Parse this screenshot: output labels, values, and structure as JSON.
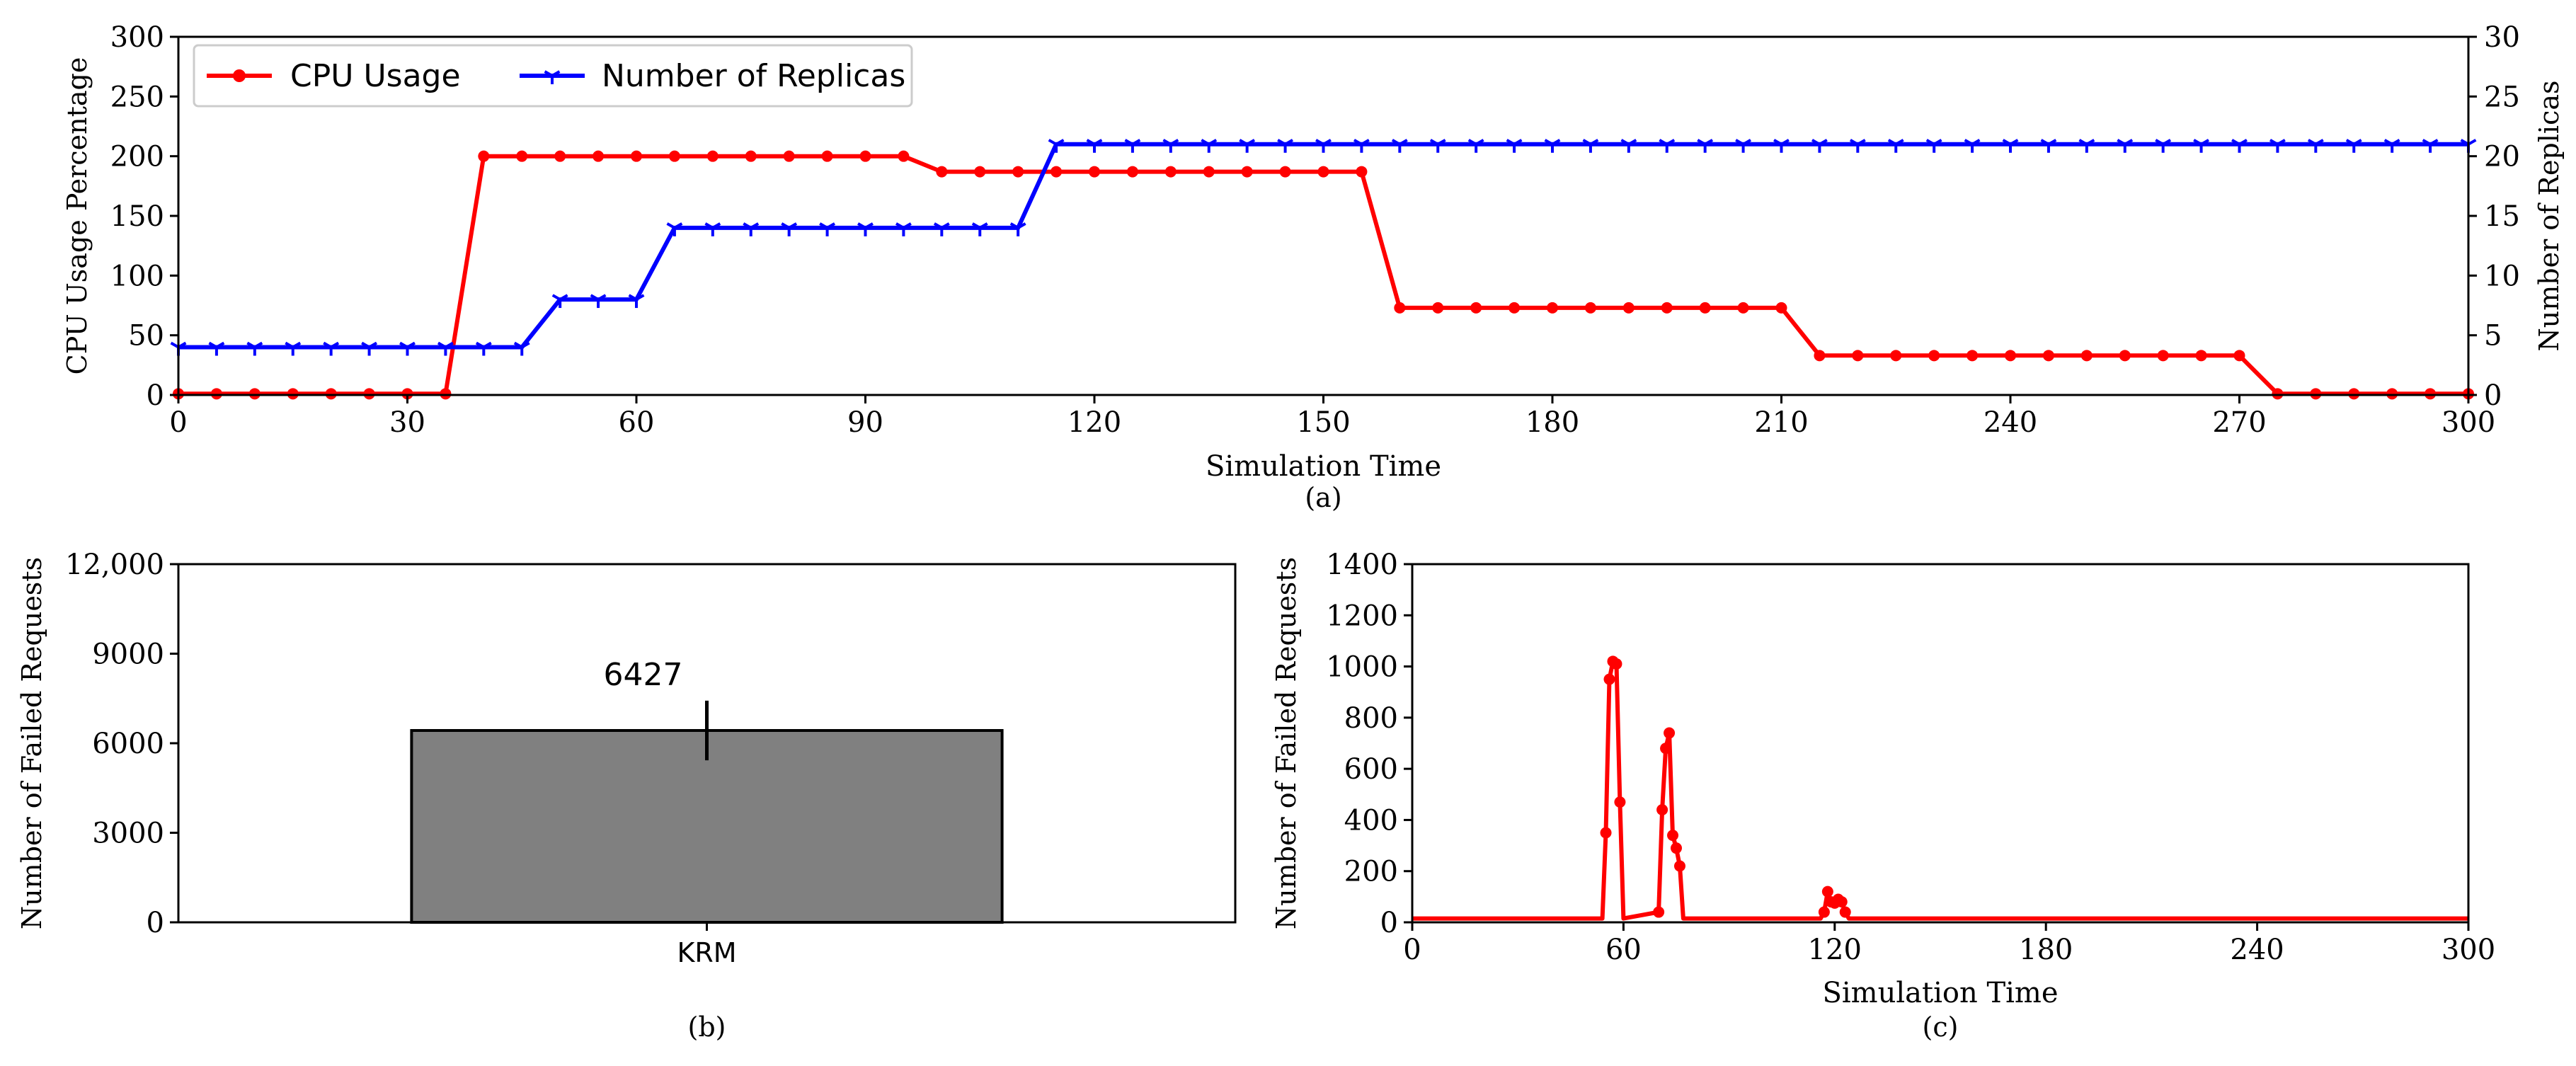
{
  "colors": {
    "red": "#ff0000",
    "blue": "#0000ff",
    "bar": "#808080",
    "axis": "#000000"
  },
  "chart_data": [
    {
      "panel": "a",
      "type": "line",
      "caption": "(a)",
      "xlabel": "Simulation Time",
      "ylabel": "CPU Usage Percentage",
      "ylabel_right": "Number of Replicas",
      "xlim": [
        0,
        300
      ],
      "ylim": [
        0,
        300
      ],
      "ylim_right": [
        0,
        30
      ],
      "xticks": [
        0,
        30,
        60,
        90,
        120,
        150,
        180,
        210,
        240,
        270,
        300
      ],
      "yticks": [
        0,
        50,
        100,
        150,
        200,
        250,
        300
      ],
      "yticks_right": [
        0,
        5,
        10,
        15,
        20,
        25,
        30
      ],
      "legend_location": "upper-left",
      "grid": false,
      "series": [
        {
          "name": "CPU Usage",
          "axis": "left",
          "color": "#ff0000",
          "marker": "circle",
          "x": [
            0,
            5,
            10,
            15,
            20,
            25,
            30,
            35,
            40,
            45,
            50,
            55,
            60,
            65,
            70,
            75,
            80,
            85,
            90,
            95,
            100,
            105,
            110,
            115,
            120,
            125,
            130,
            135,
            140,
            145,
            150,
            155,
            160,
            165,
            170,
            175,
            180,
            185,
            190,
            195,
            200,
            205,
            210,
            215,
            220,
            225,
            230,
            235,
            240,
            245,
            250,
            255,
            260,
            265,
            270,
            275,
            280,
            285,
            290,
            295,
            300
          ],
          "y": [
            1,
            1,
            1,
            1,
            1,
            1,
            1,
            1,
            200,
            200,
            200,
            200,
            200,
            200,
            200,
            200,
            200,
            200,
            200,
            200,
            187,
            187,
            187,
            187,
            187,
            187,
            187,
            187,
            187,
            187,
            187,
            187,
            73,
            73,
            73,
            73,
            73,
            73,
            73,
            73,
            73,
            73,
            73,
            33,
            33,
            33,
            33,
            33,
            33,
            33,
            33,
            33,
            33,
            33,
            33,
            1,
            1,
            1,
            1,
            1,
            1
          ]
        },
        {
          "name": "Number of Replicas",
          "axis": "right",
          "color": "#0000ff",
          "marker": "tri_down",
          "x": [
            0,
            5,
            10,
            15,
            20,
            25,
            30,
            35,
            40,
            45,
            50,
            55,
            60,
            65,
            70,
            75,
            80,
            85,
            90,
            95,
            100,
            105,
            110,
            115,
            120,
            125,
            130,
            135,
            140,
            145,
            150,
            155,
            160,
            165,
            170,
            175,
            180,
            185,
            190,
            195,
            200,
            205,
            210,
            215,
            220,
            225,
            230,
            235,
            240,
            245,
            250,
            255,
            260,
            265,
            270,
            275,
            280,
            285,
            290,
            295,
            300
          ],
          "y": [
            4,
            4,
            4,
            4,
            4,
            4,
            4,
            4,
            4,
            4,
            8,
            8,
            8,
            14,
            14,
            14,
            14,
            14,
            14,
            14,
            14,
            14,
            14,
            21,
            21,
            21,
            21,
            21,
            21,
            21,
            21,
            21,
            21,
            21,
            21,
            21,
            21,
            21,
            21,
            21,
            21,
            21,
            21,
            21,
            21,
            21,
            21,
            21,
            21,
            21,
            21,
            21,
            21,
            21,
            21,
            21,
            21,
            21,
            21,
            21,
            21
          ]
        }
      ]
    },
    {
      "panel": "b",
      "type": "bar",
      "caption": "(b)",
      "ylabel": "Number of Failed Requests",
      "categories": [
        "KRM"
      ],
      "values": [
        6427
      ],
      "value_labels": [
        "6427"
      ],
      "error": [
        1000
      ],
      "ylim": [
        0,
        12000
      ],
      "yticks": [
        0,
        3000,
        6000,
        9000,
        12000
      ],
      "ytick_labels": [
        "0",
        "3000",
        "6000",
        "9000",
        "12,000"
      ],
      "grid": false
    },
    {
      "panel": "c",
      "type": "line",
      "caption": "(c)",
      "xlabel": "Simulation Time",
      "ylabel": "Number of Failed Requests",
      "xlim": [
        0,
        300
      ],
      "ylim": [
        0,
        1400
      ],
      "xticks": [
        0,
        60,
        120,
        180,
        240,
        300
      ],
      "yticks": [
        0,
        200,
        400,
        600,
        800,
        1000,
        1200,
        1400
      ],
      "grid": false,
      "series": [
        {
          "color": "#ff0000",
          "marker": "circle",
          "x": [
            0,
            54,
            55,
            56,
            57,
            58,
            59,
            60,
            70,
            71,
            72,
            73,
            74,
            75,
            76,
            77,
            116,
            117,
            118,
            119,
            120,
            121,
            122,
            123,
            124,
            125,
            300
          ],
          "y": [
            15,
            15,
            350,
            950,
            1020,
            1010,
            470,
            15,
            40,
            440,
            680,
            740,
            340,
            290,
            220,
            15,
            15,
            40,
            120,
            80,
            75,
            90,
            80,
            40,
            15,
            15,
            15
          ],
          "marked": [
            false,
            false,
            true,
            true,
            true,
            true,
            true,
            false,
            true,
            true,
            true,
            true,
            true,
            true,
            true,
            false,
            false,
            true,
            true,
            true,
            true,
            true,
            true,
            true,
            false,
            false,
            false
          ]
        }
      ]
    }
  ]
}
